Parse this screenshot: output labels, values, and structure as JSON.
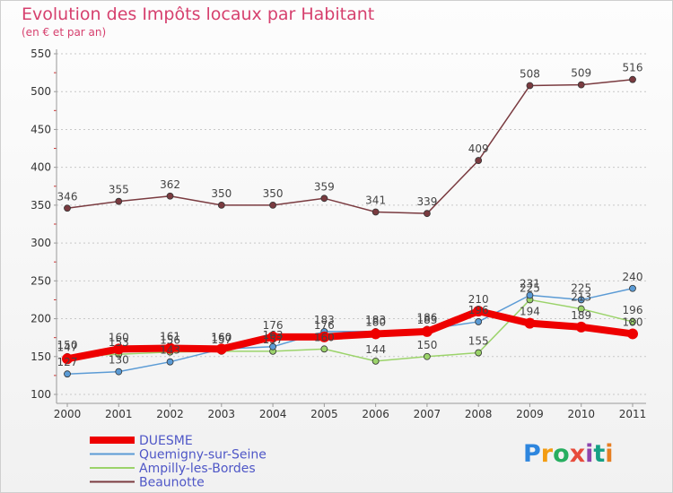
{
  "chart_data": {
    "type": "line",
    "title": "Evolution des Impôts locaux par Habitant",
    "subtitle": "(en € et par an)",
    "xlabel": "",
    "ylabel": "",
    "x": [
      "2000",
      "2001",
      "2002",
      "2003",
      "2004",
      "2005",
      "2006",
      "2007",
      "2008",
      "2009",
      "2010",
      "2011"
    ],
    "ylim": [
      100,
      550
    ],
    "yticks": [
      100,
      150,
      200,
      250,
      300,
      350,
      400,
      450,
      500,
      550
    ],
    "grid": "horizontal dotted",
    "legend": "bottom-left",
    "series": [
      {
        "name": "DUESME",
        "color": "#ee0000",
        "values": [
          147,
          160,
          161,
          160,
          176,
          176,
          180,
          183,
          210,
          194,
          189,
          180
        ],
        "labels": [
          "147",
          "160",
          "161",
          "160",
          "176",
          "176",
          "180",
          "183",
          "210",
          "194",
          "189",
          "180"
        ]
      },
      {
        "name": "Quemigny-sur-Seine",
        "color": "#5b9bd5",
        "values": [
          127,
          130,
          143,
          160,
          163,
          183,
          183,
          186,
          196,
          231,
          225,
          240
        ],
        "labels": [
          "127",
          "130",
          "143",
          "160",
          "163",
          "183",
          "183",
          "186",
          "196",
          "231",
          "225",
          "240"
        ]
      },
      {
        "name": "Ampilly-les-Bordes",
        "color": "#9bd36a",
        "values": [
          150,
          153,
          156,
          157,
          157,
          160,
          144,
          150,
          155,
          225,
          213,
          196
        ],
        "labels": [
          "150",
          "153",
          "156",
          "157",
          "157",
          "160",
          "144",
          "150",
          "155",
          "225",
          "213",
          "196"
        ]
      },
      {
        "name": "Beaunotte",
        "color": "#7a3b40",
        "values": [
          346,
          355,
          362,
          350,
          350,
          359,
          341,
          339,
          409,
          508,
          509,
          516
        ],
        "labels": [
          "346",
          "355",
          "362",
          "350",
          "350",
          "359",
          "341",
          "339",
          "409",
          "508",
          "509",
          "516"
        ]
      }
    ]
  },
  "logo": {
    "text": "Proxiti",
    "letter_colors": [
      "#2e86de",
      "#f39c12",
      "#27ae60",
      "#e74c3c",
      "#8e44ad",
      "#16a085",
      "#e67e22"
    ]
  }
}
